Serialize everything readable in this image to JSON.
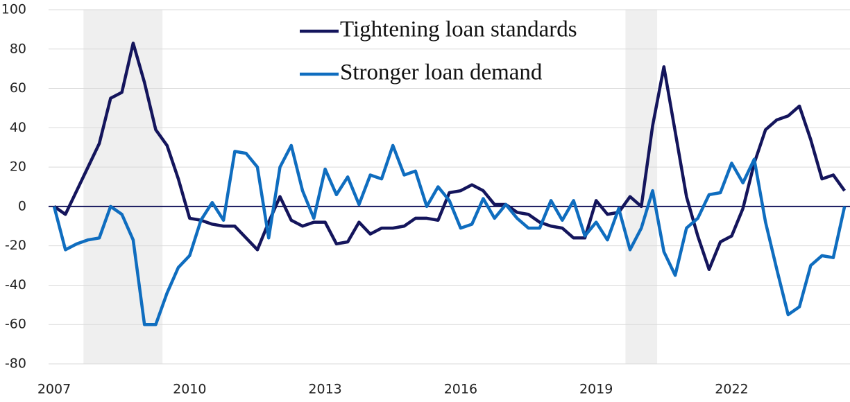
{
  "chart_data": {
    "type": "line",
    "x": [
      2007,
      2007.25,
      2007.5,
      2007.75,
      2008,
      2008.25,
      2008.5,
      2008.75,
      2009,
      2009.25,
      2009.5,
      2009.75,
      2010,
      2010.25,
      2010.5,
      2010.75,
      2011,
      2011.25,
      2011.5,
      2011.75,
      2012,
      2012.25,
      2012.5,
      2012.75,
      2013,
      2013.25,
      2013.5,
      2013.75,
      2014,
      2014.25,
      2014.5,
      2014.75,
      2015,
      2015.25,
      2015.5,
      2015.75,
      2016,
      2016.25,
      2016.5,
      2016.75,
      2017,
      2017.25,
      2017.5,
      2017.75,
      2018,
      2018.25,
      2018.5,
      2018.75,
      2019,
      2019.25,
      2019.5,
      2019.75,
      2020,
      2020.25,
      2020.5,
      2020.75,
      2021,
      2021.25,
      2021.5,
      2021.75,
      2022,
      2022.25,
      2022.5,
      2022.75,
      2023,
      2023.25,
      2023.5,
      2023.75,
      2024,
      2024.25,
      2024.5
    ],
    "series": [
      {
        "name": "Tightening loan standards",
        "color": "#14155c",
        "values": [
          0,
          -4,
          8,
          20,
          32,
          55,
          58,
          83,
          63,
          39,
          31,
          14,
          -6,
          -7,
          -9,
          -10,
          -10,
          -16,
          -22,
          -8,
          5,
          -7,
          -10,
          -8,
          -8,
          -19,
          -18,
          -8,
          -14,
          -11,
          -11,
          -10,
          -6,
          -6,
          -7,
          7,
          8,
          11,
          8,
          1,
          1,
          -3,
          -4,
          -8,
          -10,
          -11,
          -16,
          -16,
          3,
          -4,
          -3,
          5,
          0,
          41,
          71,
          38,
          5,
          -15,
          -32,
          -18,
          -15,
          -1,
          22,
          39,
          44,
          46,
          51,
          34,
          14,
          16,
          8
        ]
      },
      {
        "name": "Stronger loan demand",
        "color": "#0f6dbf",
        "values": [
          0,
          -22,
          -19,
          -17,
          -16,
          0,
          -4,
          -17,
          -60,
          -60,
          -44,
          -31,
          -25,
          -7,
          2,
          -7,
          28,
          27,
          20,
          -16,
          20,
          31,
          8,
          -6,
          19,
          6,
          15,
          1,
          16,
          14,
          31,
          16,
          18,
          0,
          10,
          3,
          -11,
          -9,
          4,
          -6,
          1,
          -6,
          -11,
          -11,
          3,
          -7,
          3,
          -15,
          -8,
          -17,
          -1,
          -22,
          -11,
          8,
          -23,
          -35,
          -11,
          -6,
          6,
          7,
          22,
          12,
          24,
          -8,
          -32,
          -55,
          -51,
          -30,
          -25,
          -26,
          0
        ]
      }
    ],
    "shaded_periods": [
      [
        2007.65,
        2009.4
      ],
      [
        2019.65,
        2020.35
      ]
    ],
    "xlim": [
      2007,
      2024.62
    ],
    "xticks": [
      2007,
      2010,
      2013,
      2016,
      2019,
      2022
    ],
    "ylim": [
      -80,
      100
    ],
    "yticks": [
      -80,
      -60,
      -40,
      -20,
      0,
      20,
      40,
      60,
      80,
      100
    ],
    "grid": true,
    "legend": "top"
  }
}
